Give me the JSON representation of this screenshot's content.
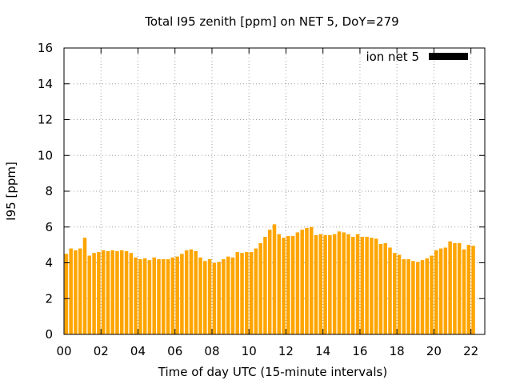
{
  "chart_data": {
    "type": "bar",
    "title": "Total I95 zenith [ppm] on NET 5, DoY=279",
    "xlabel": "Time of day UTC (15-minute intervals)",
    "ylabel": "I95 [ppm]",
    "xlim": [
      0,
      22.75
    ],
    "ylim": [
      0,
      16
    ],
    "x_ticks": [
      {
        "value": 0,
        "label": "00"
      },
      {
        "value": 2,
        "label": "02"
      },
      {
        "value": 4,
        "label": "04"
      },
      {
        "value": 6,
        "label": "06"
      },
      {
        "value": 8,
        "label": "08"
      },
      {
        "value": 10,
        "label": "10"
      },
      {
        "value": 12,
        "label": "12"
      },
      {
        "value": 14,
        "label": "14"
      },
      {
        "value": 16,
        "label": "16"
      },
      {
        "value": 18,
        "label": "18"
      },
      {
        "value": 20,
        "label": "20"
      },
      {
        "value": 22,
        "label": "22"
      }
    ],
    "y_ticks": [
      0,
      2,
      4,
      6,
      8,
      10,
      12,
      14,
      16
    ],
    "grid": true,
    "legend_position": "top-right",
    "series": [
      {
        "name": "ion net 5",
        "color": "#ffa500",
        "legend_color": "#000000",
        "x_start": 0,
        "x_step": 0.25,
        "values": [
          4.5,
          4.8,
          4.7,
          4.8,
          5.4,
          4.4,
          4.55,
          4.6,
          4.7,
          4.65,
          4.7,
          4.65,
          4.7,
          4.65,
          4.55,
          4.3,
          4.2,
          4.25,
          4.15,
          4.3,
          4.2,
          4.2,
          4.2,
          4.3,
          4.35,
          4.5,
          4.7,
          4.75,
          4.65,
          4.3,
          4.1,
          4.2,
          4.0,
          4.05,
          4.2,
          4.35,
          4.3,
          4.6,
          4.55,
          4.6,
          4.6,
          4.8,
          5.1,
          5.45,
          5.85,
          6.15,
          5.6,
          5.4,
          5.5,
          5.5,
          5.7,
          5.85,
          5.95,
          6.0,
          5.55,
          5.6,
          5.55,
          5.55,
          5.6,
          5.75,
          5.7,
          5.6,
          5.45,
          5.6,
          5.45,
          5.45,
          5.4,
          5.35,
          5.05,
          5.1,
          4.85,
          4.55,
          4.45,
          4.2,
          4.2,
          4.1,
          4.05,
          4.15,
          4.25,
          4.4,
          4.7,
          4.8,
          4.85,
          5.2,
          5.1,
          5.1,
          4.75,
          5.0,
          4.95
        ]
      }
    ]
  }
}
